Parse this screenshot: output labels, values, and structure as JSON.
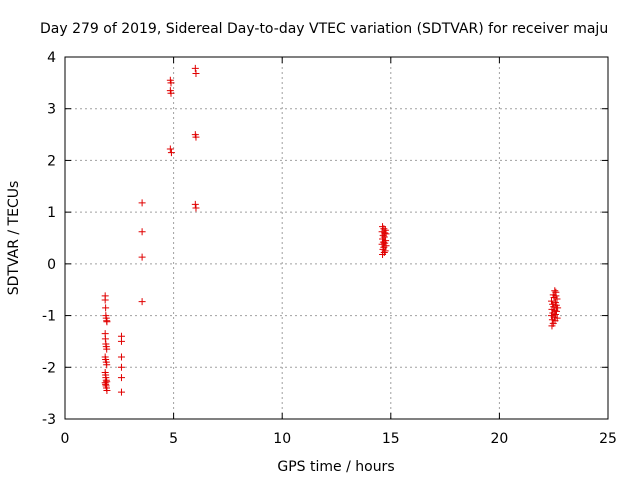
{
  "chart_data": {
    "type": "scatter",
    "title": "Day 279 of 2019, Sidereal Day-to-day VTEC variation (SDTVAR) for receiver maju",
    "xlabel": "GPS time / hours",
    "ylabel": "SDTVAR / TECUs",
    "xlim": [
      0,
      25
    ],
    "ylim": [
      -3,
      4
    ],
    "xticks": [
      0,
      5,
      10,
      15,
      20,
      25
    ],
    "yticks": [
      -3,
      -2,
      -1,
      0,
      1,
      2,
      3,
      4
    ],
    "grid": true,
    "legend": "none",
    "marker": "plus",
    "color": "#e00000",
    "points": [
      {
        "x": 1.85,
        "y": -0.62
      },
      {
        "x": 1.85,
        "y": -0.7
      },
      {
        "x": 1.87,
        "y": -0.85
      },
      {
        "x": 1.88,
        "y": -1.0
      },
      {
        "x": 1.9,
        "y": -1.05
      },
      {
        "x": 1.92,
        "y": -1.1
      },
      {
        "x": 1.93,
        "y": -1.12
      },
      {
        "x": 1.85,
        "y": -1.35
      },
      {
        "x": 1.86,
        "y": -1.45
      },
      {
        "x": 1.88,
        "y": -1.55
      },
      {
        "x": 1.9,
        "y": -1.6
      },
      {
        "x": 1.92,
        "y": -1.65
      },
      {
        "x": 1.85,
        "y": -1.8
      },
      {
        "x": 1.87,
        "y": -1.85
      },
      {
        "x": 1.9,
        "y": -1.9
      },
      {
        "x": 1.92,
        "y": -1.95
      },
      {
        "x": 1.85,
        "y": -2.1
      },
      {
        "x": 1.87,
        "y": -2.15
      },
      {
        "x": 1.88,
        "y": -2.2
      },
      {
        "x": 1.9,
        "y": -2.25
      },
      {
        "x": 1.92,
        "y": -2.28
      },
      {
        "x": 1.85,
        "y": -2.3
      },
      {
        "x": 1.87,
        "y": -2.33
      },
      {
        "x": 1.89,
        "y": -2.36
      },
      {
        "x": 1.91,
        "y": -2.4
      },
      {
        "x": 1.93,
        "y": -2.45
      },
      {
        "x": 2.6,
        "y": -1.4
      },
      {
        "x": 2.6,
        "y": -1.5
      },
      {
        "x": 2.6,
        "y": -1.8
      },
      {
        "x": 2.6,
        "y": -2.0
      },
      {
        "x": 2.6,
        "y": -2.2
      },
      {
        "x": 2.6,
        "y": -2.48
      },
      {
        "x": 3.55,
        "y": 1.18
      },
      {
        "x": 3.55,
        "y": 0.62
      },
      {
        "x": 3.55,
        "y": 0.13
      },
      {
        "x": 3.55,
        "y": -0.73
      },
      {
        "x": 4.85,
        "y": 3.55
      },
      {
        "x": 4.88,
        "y": 3.5
      },
      {
        "x": 4.85,
        "y": 3.35
      },
      {
        "x": 4.88,
        "y": 3.3
      },
      {
        "x": 4.85,
        "y": 2.22
      },
      {
        "x": 4.9,
        "y": 2.15
      },
      {
        "x": 6.0,
        "y": 3.78
      },
      {
        "x": 6.03,
        "y": 3.68
      },
      {
        "x": 6.0,
        "y": 2.5
      },
      {
        "x": 6.03,
        "y": 2.45
      },
      {
        "x": 6.0,
        "y": 1.15
      },
      {
        "x": 6.03,
        "y": 1.08
      },
      {
        "x": 14.62,
        "y": 0.72
      },
      {
        "x": 14.68,
        "y": 0.68
      },
      {
        "x": 14.75,
        "y": 0.65
      },
      {
        "x": 14.6,
        "y": 0.62
      },
      {
        "x": 14.72,
        "y": 0.6
      },
      {
        "x": 14.78,
        "y": 0.58
      },
      {
        "x": 14.65,
        "y": 0.55
      },
      {
        "x": 14.7,
        "y": 0.52
      },
      {
        "x": 14.62,
        "y": 0.48
      },
      {
        "x": 14.76,
        "y": 0.45
      },
      {
        "x": 14.66,
        "y": 0.42
      },
      {
        "x": 14.72,
        "y": 0.4
      },
      {
        "x": 14.6,
        "y": 0.38
      },
      {
        "x": 14.78,
        "y": 0.35
      },
      {
        "x": 14.68,
        "y": 0.32
      },
      {
        "x": 14.64,
        "y": 0.28
      },
      {
        "x": 14.74,
        "y": 0.25
      },
      {
        "x": 14.7,
        "y": 0.22
      },
      {
        "x": 14.62,
        "y": 0.18
      },
      {
        "x": 22.55,
        "y": -0.52
      },
      {
        "x": 22.6,
        "y": -0.55
      },
      {
        "x": 22.48,
        "y": -0.6
      },
      {
        "x": 22.52,
        "y": -0.65
      },
      {
        "x": 22.65,
        "y": -0.68
      },
      {
        "x": 22.4,
        "y": -0.72
      },
      {
        "x": 22.58,
        "y": -0.75
      },
      {
        "x": 22.45,
        "y": -0.78
      },
      {
        "x": 22.62,
        "y": -0.8
      },
      {
        "x": 22.5,
        "y": -0.83
      },
      {
        "x": 22.68,
        "y": -0.85
      },
      {
        "x": 22.42,
        "y": -0.88
      },
      {
        "x": 22.55,
        "y": -0.9
      },
      {
        "x": 22.63,
        "y": -0.92
      },
      {
        "x": 22.46,
        "y": -0.95
      },
      {
        "x": 22.58,
        "y": -0.98
      },
      {
        "x": 22.4,
        "y": -1.0
      },
      {
        "x": 22.52,
        "y": -1.03
      },
      {
        "x": 22.66,
        "y": -1.05
      },
      {
        "x": 22.44,
        "y": -1.08
      },
      {
        "x": 22.56,
        "y": -1.1
      },
      {
        "x": 22.48,
        "y": -1.15
      },
      {
        "x": 22.42,
        "y": -1.2
      },
      {
        "x": 22.6,
        "y": -0.62
      }
    ]
  }
}
